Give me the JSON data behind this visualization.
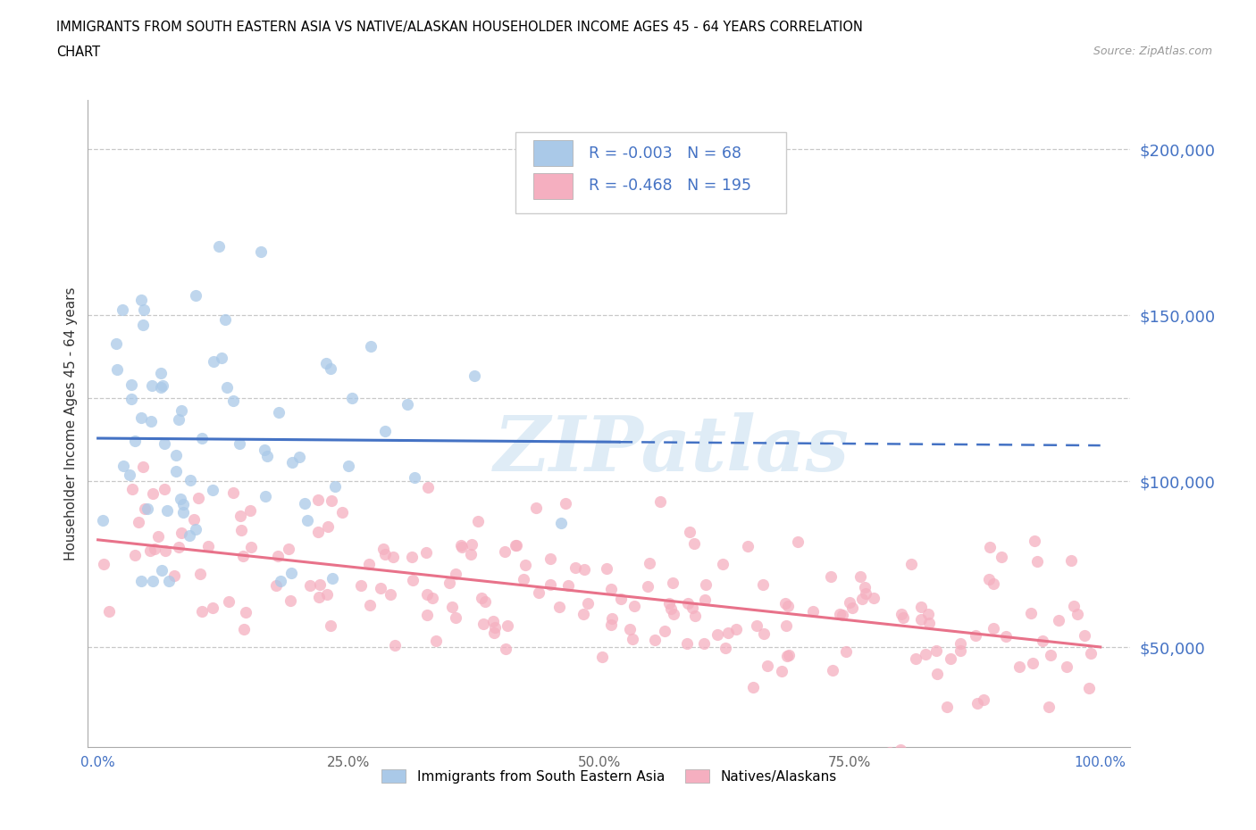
{
  "title_line1": "IMMIGRANTS FROM SOUTH EASTERN ASIA VS NATIVE/ALASKAN HOUSEHOLDER INCOME AGES 45 - 64 YEARS CORRELATION",
  "title_line2": "CHART",
  "source": "Source: ZipAtlas.com",
  "ylabel": "Householder Income Ages 45 - 64 years",
  "yticks": [
    50000,
    100000,
    150000,
    200000
  ],
  "ytick_labels": [
    "$50,000",
    "$100,000",
    "$150,000",
    "$200,000"
  ],
  "xticks": [
    0.0,
    0.25,
    0.5,
    0.75,
    1.0
  ],
  "xtick_labels": [
    "0.0%",
    "25.0%",
    "50.0%",
    "75.0%",
    "100.0%"
  ],
  "blue_R": -0.003,
  "blue_N": 68,
  "pink_R": -0.468,
  "pink_N": 195,
  "blue_color": "#aac9e8",
  "pink_color": "#f5afc0",
  "blue_line_color": "#4472c4",
  "pink_line_color": "#e8728a",
  "legend_label_blue": "Immigrants from South Eastern Asia",
  "legend_label_pink": "Natives/Alaskans",
  "watermark": "ZIPatlas",
  "xlim": [
    -0.01,
    1.03
  ],
  "ylim": [
    20000,
    215000
  ]
}
